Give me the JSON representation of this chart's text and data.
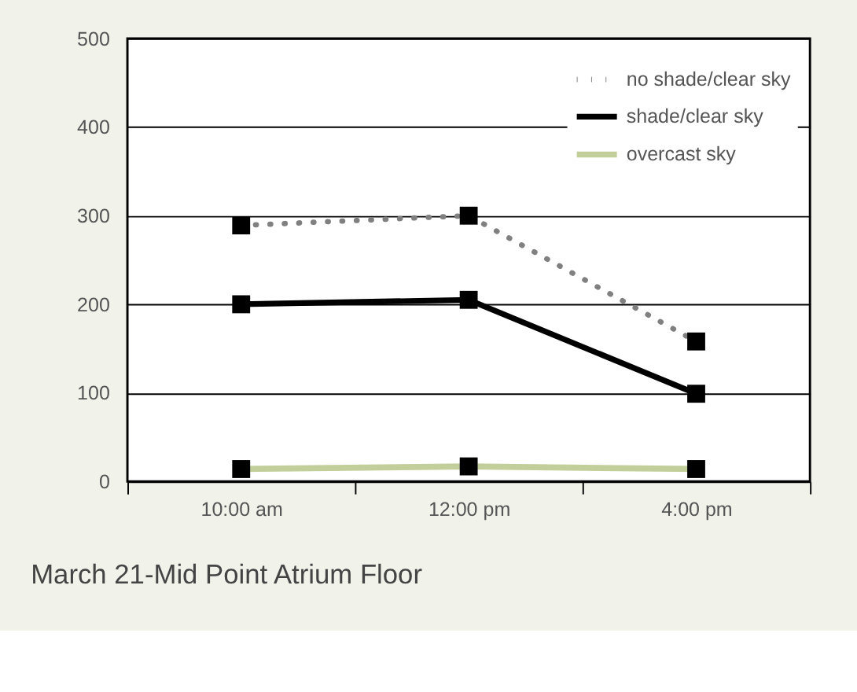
{
  "chart_data": {
    "type": "line",
    "title": "March 21-Mid Point Atrium Floor",
    "categories": [
      "10:00 am",
      "12:00 pm",
      "4:00 pm"
    ],
    "series": [
      {
        "name": "no shade/clear sky",
        "color": "#808080",
        "line_style": "dotted",
        "values": [
          289,
          300,
          158
        ]
      },
      {
        "name": "shade/clear sky",
        "color": "#000000",
        "line_style": "solid",
        "values": [
          200,
          205,
          99
        ]
      },
      {
        "name": "overcast sky",
        "color": "#c3cf9a",
        "line_style": "solid",
        "values": [
          14,
          17,
          14
        ]
      }
    ],
    "ylim": [
      0,
      500
    ],
    "yticks": [
      0,
      100,
      200,
      300,
      400,
      500
    ],
    "grid": "y",
    "legend": "top right",
    "marker": "square"
  }
}
